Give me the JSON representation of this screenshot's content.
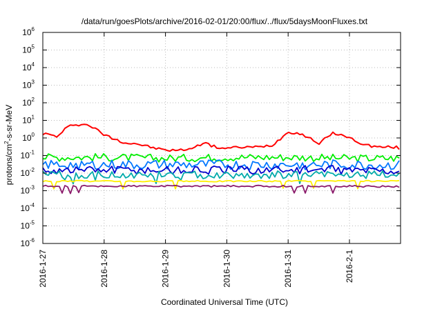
{
  "chart_data": {
    "type": "line",
    "title": "/data/run/goesPlots/archive/2016-02-01/20:00/flux/../flux/5daysMoonFluxes.txt",
    "xlabel": "Coordinated Universal Time (UTC)",
    "ylabel": "protons/cm2-s-sr-MeV",
    "ylabel_parts": {
      "pre": "protons/cm",
      "sup": "2",
      "post": "-s-sr-MeV"
    },
    "yscale": "log",
    "ylim": [
      1e-06,
      1000000.0
    ],
    "y_ticks": [
      {
        "base": "10",
        "exp": "-6"
      },
      {
        "base": "10",
        "exp": "-5"
      },
      {
        "base": "10",
        "exp": "-4"
      },
      {
        "base": "10",
        "exp": "-3"
      },
      {
        "base": "10",
        "exp": "-2"
      },
      {
        "base": "10",
        "exp": "-1"
      },
      {
        "base": "10",
        "exp": "0"
      },
      {
        "base": "10",
        "exp": "1"
      },
      {
        "base": "10",
        "exp": "2"
      },
      {
        "base": "10",
        "exp": "3"
      },
      {
        "base": "10",
        "exp": "4"
      },
      {
        "base": "10",
        "exp": "5"
      },
      {
        "base": "10",
        "exp": "6"
      }
    ],
    "xlim": [
      "2016-01-27 00:00",
      "2016-02-01 20:00"
    ],
    "x_ticks": [
      "2016-1-27",
      "2016-1-28",
      "2016-1-29",
      "2016-1-30",
      "2016-1-31",
      "2016-2-1"
    ],
    "grid": true,
    "legend": "none",
    "series": [
      {
        "color": "#ff0000",
        "x": [
          "2016-01-27 00:00",
          "2016-01-27 06:00",
          "2016-01-27 09:00",
          "2016-01-27 12:00",
          "2016-01-27 18:00",
          "2016-01-27 21:00",
          "2016-01-28 00:00",
          "2016-01-28 03:00",
          "2016-01-28 06:00",
          "2016-01-28 09:00",
          "2016-01-28 12:00",
          "2016-01-28 18:00",
          "2016-01-29 00:00",
          "2016-01-29 06:00",
          "2016-01-29 12:00",
          "2016-01-29 15:00",
          "2016-01-29 18:00",
          "2016-01-29 21:00",
          "2016-01-30 00:00",
          "2016-01-30 06:00",
          "2016-01-30 12:00",
          "2016-01-30 18:00",
          "2016-01-31 00:00",
          "2016-01-31 03:00",
          "2016-01-31 06:00",
          "2016-01-31 12:00",
          "2016-01-31 18:00",
          "2016-02-01 00:00",
          "2016-02-01 06:00",
          "2016-02-01 12:00",
          "2016-02-01 18:00",
          "2016-02-01 20:00"
        ],
        "y": [
          1.8,
          1.2,
          3.5,
          6.0,
          5.5,
          3.0,
          1.5,
          1.0,
          0.7,
          0.5,
          0.5,
          0.3,
          0.2,
          0.2,
          0.3,
          0.6,
          0.35,
          0.28,
          0.26,
          0.3,
          0.3,
          0.4,
          2.2,
          2.0,
          1.5,
          0.5,
          2.0,
          1.0,
          0.4,
          0.3,
          0.3,
          0.25
        ]
      },
      {
        "color": "#00ee00",
        "x": [
          "2016-01-27 00:00",
          "2016-01-28 00:00",
          "2016-01-29 00:00",
          "2016-01-30 00:00",
          "2016-01-31 00:00",
          "2016-02-01 00:00",
          "2016-02-01 20:00"
        ],
        "y": [
          0.08,
          0.08,
          0.07,
          0.08,
          0.08,
          0.07,
          0.07
        ]
      },
      {
        "color": "#0077ff",
        "x": [
          "2016-01-27 00:00",
          "2016-01-28 00:00",
          "2016-01-29 00:00",
          "2016-01-30 00:00",
          "2016-01-31 00:00",
          "2016-02-01 00:00",
          "2016-02-01 20:00"
        ],
        "y": [
          0.03,
          0.03,
          0.03,
          0.03,
          0.03,
          0.03,
          0.028
        ]
      },
      {
        "color": "#0000cc",
        "x": [
          "2016-01-27 00:00",
          "2016-01-28 00:00",
          "2016-01-29 00:00",
          "2016-01-30 00:00",
          "2016-01-31 00:00",
          "2016-02-01 00:00",
          "2016-02-01 20:00"
        ],
        "y": [
          0.015,
          0.016,
          0.015,
          0.015,
          0.016,
          0.015,
          0.014
        ]
      },
      {
        "color": "#00aaaa",
        "x": [
          "2016-01-27 00:00",
          "2016-01-28 00:00",
          "2016-01-29 00:00",
          "2016-01-30 00:00",
          "2016-01-31 00:00",
          "2016-02-01 00:00",
          "2016-02-01 20:00"
        ],
        "y": [
          0.008,
          0.008,
          0.008,
          0.008,
          0.008,
          0.008,
          0.008
        ]
      },
      {
        "color": "#ffee00",
        "x": [
          "2016-01-27 00:00",
          "2016-01-28 00:00",
          "2016-01-29 00:00",
          "2016-01-30 00:00",
          "2016-01-31 00:00",
          "2016-02-01 00:00",
          "2016-02-01 20:00"
        ],
        "y": [
          0.0035,
          0.0035,
          0.0035,
          0.0035,
          0.0035,
          0.0035,
          0.0035
        ]
      },
      {
        "color": "#8b1a6b",
        "x": [
          "2016-01-27 00:00",
          "2016-01-28 00:00",
          "2016-01-29 00:00",
          "2016-01-30 00:00",
          "2016-01-31 00:00",
          "2016-02-01 00:00",
          "2016-02-01 20:00"
        ],
        "y": [
          0.0018,
          0.0018,
          0.0018,
          0.0018,
          0.0018,
          0.0018,
          0.0017
        ]
      }
    ]
  }
}
